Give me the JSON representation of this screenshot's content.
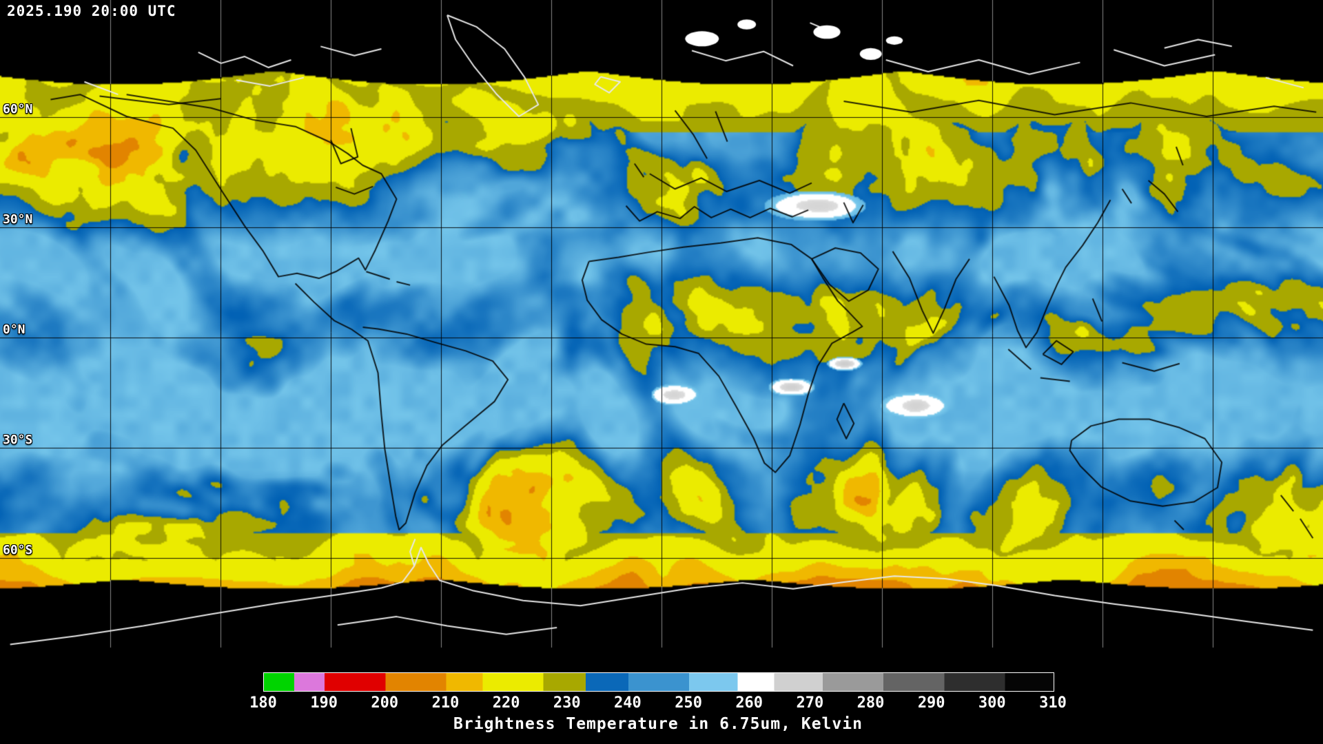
{
  "header": {
    "timestamp": "2025.190 20:00 UTC"
  },
  "map": {
    "latitude_labels": [
      "60°N",
      "30°N",
      "0°N",
      "30°S",
      "60°S"
    ],
    "colors": {
      "no_data_black": "#000000",
      "dry_ocean_blue": "#1e8ad2",
      "light_dry_blue": "#7cc8ee",
      "moist_yellow": "#eaea00",
      "olive_yellow": "#a8a800",
      "cold_cloud_orange": "#e08200",
      "deep_convection_red": "#e00000",
      "warm_surface_white": "#ffffff",
      "coastline_dark": "#000000",
      "coastline_light": "#ffffff",
      "graticule_on_data": "#000000",
      "graticule_on_black": "#8a8a8a"
    }
  },
  "legend": {
    "title": "Brightness Temperature in 6.75um, Kelvin",
    "tick_labels": [
      "180",
      "190",
      "200",
      "210",
      "220",
      "230",
      "240",
      "250",
      "260",
      "270",
      "280",
      "290",
      "300",
      "310"
    ],
    "range": {
      "min": 180,
      "max": 310
    },
    "colorbar_stops": [
      {
        "from": 180,
        "to": 185,
        "color": "#00d400"
      },
      {
        "from": 185,
        "to": 190,
        "color": "#dc78dc"
      },
      {
        "from": 190,
        "to": 200,
        "color": "#e00000"
      },
      {
        "from": 200,
        "to": 210,
        "color": "#e28400"
      },
      {
        "from": 210,
        "to": 216,
        "color": "#f0b800"
      },
      {
        "from": 216,
        "to": 226,
        "color": "#ebeb00"
      },
      {
        "from": 226,
        "to": 233,
        "color": "#a8a800"
      },
      {
        "from": 233,
        "to": 240,
        "color": "#0a68b8"
      },
      {
        "from": 240,
        "to": 250,
        "color": "#3b93cf"
      },
      {
        "from": 250,
        "to": 258,
        "color": "#7cc8ee"
      },
      {
        "from": 258,
        "to": 264,
        "color": "#ffffff"
      },
      {
        "from": 264,
        "to": 272,
        "color": "#d0d0d0"
      },
      {
        "from": 272,
        "to": 282,
        "color": "#9a9a9a"
      },
      {
        "from": 282,
        "to": 292,
        "color": "#646464"
      },
      {
        "from": 292,
        "to": 302,
        "color": "#2e2e2e"
      },
      {
        "from": 302,
        "to": 310,
        "color": "#050505"
      }
    ]
  }
}
